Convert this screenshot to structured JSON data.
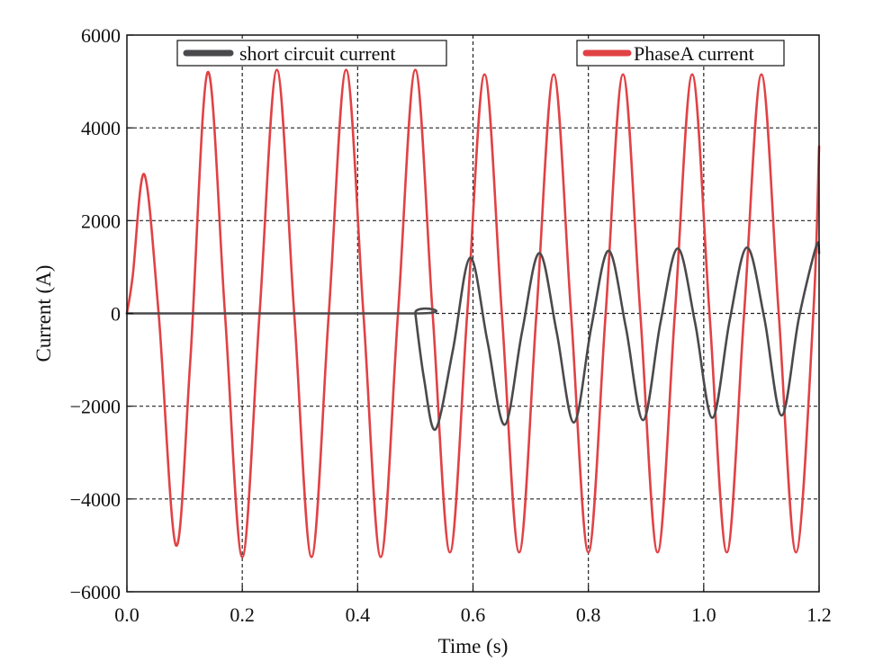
{
  "chart_data": {
    "type": "line",
    "xlabel": "Time (s)",
    "ylabel": "Current (A)",
    "xlim": [
      0,
      1.2
    ],
    "ylim": [
      -6000,
      6000
    ],
    "x_ticks": [
      0,
      0.2,
      0.4,
      0.6,
      0.8,
      1.0,
      1.2
    ],
    "x_tick_labels": [
      "0.0",
      "0.2",
      "0.4",
      "0.6",
      "0.8",
      "1.0",
      "1.2"
    ],
    "y_ticks": [
      -6000,
      -4000,
      -2000,
      0,
      2000,
      4000,
      6000
    ],
    "y_tick_labels": [
      "−6000",
      "−4000",
      "−2000",
      "0",
      "2000",
      "4000",
      "6000"
    ],
    "grid": true,
    "legend_placement": "top",
    "series": [
      {
        "name": "short circuit current",
        "color": "#4a4a4c",
        "x": [
          0,
          0.5,
          0.5,
          0.515,
          0.535,
          0.565,
          0.595,
          0.625,
          0.655,
          0.685,
          0.715,
          0.745,
          0.775,
          0.805,
          0.835,
          0.865,
          0.895,
          0.925,
          0.955,
          0.985,
          1.015,
          1.045,
          1.075,
          1.105,
          1.135,
          1.165,
          1.195,
          1.2
        ],
        "y": [
          0,
          0,
          0,
          -1400,
          -2500,
          -800,
          1200,
          -600,
          -2400,
          -400,
          1300,
          -400,
          -2350,
          -300,
          1350,
          -300,
          -2300,
          -200,
          1400,
          -200,
          -2250,
          -150,
          1420,
          -100,
          -2200,
          -100,
          1450,
          1300
        ]
      },
      {
        "name": "PhaseA current",
        "color": "#e04245",
        "x": [
          0,
          0.01,
          0.03,
          0.055,
          0.085,
          0.11,
          0.14,
          0.17,
          0.2,
          0.23,
          0.26,
          0.29,
          0.32,
          0.35,
          0.38,
          0.41,
          0.44,
          0.47,
          0.5,
          0.53,
          0.56,
          0.59,
          0.62,
          0.65,
          0.68,
          0.71,
          0.74,
          0.77,
          0.8,
          0.83,
          0.86,
          0.89,
          0.92,
          0.95,
          0.98,
          1.01,
          1.04,
          1.07,
          1.1,
          1.13,
          1.16,
          1.19,
          1.2
        ],
        "y": [
          0,
          800,
          3000,
          0,
          -5000,
          -1000,
          5200,
          0,
          -5250,
          0,
          5250,
          0,
          -5250,
          0,
          5250,
          0,
          -5250,
          0,
          5250,
          0,
          -5150,
          0,
          5150,
          0,
          -5150,
          0,
          5150,
          0,
          -5150,
          0,
          5150,
          0,
          -5150,
          0,
          5150,
          0,
          -5150,
          0,
          5150,
          0,
          -5150,
          0,
          3600
        ]
      }
    ]
  }
}
